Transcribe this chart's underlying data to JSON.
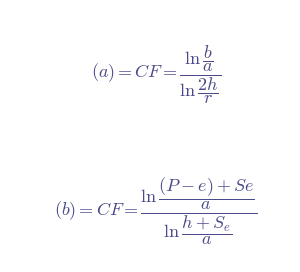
{
  "background_color": "#ffffff",
  "text_color": "#4a4a8a",
  "formula_a_left": "$(a) = CF = $",
  "formula_b_left": "$(b) = CF = $",
  "fontsize": 13,
  "color": "#4a4a8a"
}
